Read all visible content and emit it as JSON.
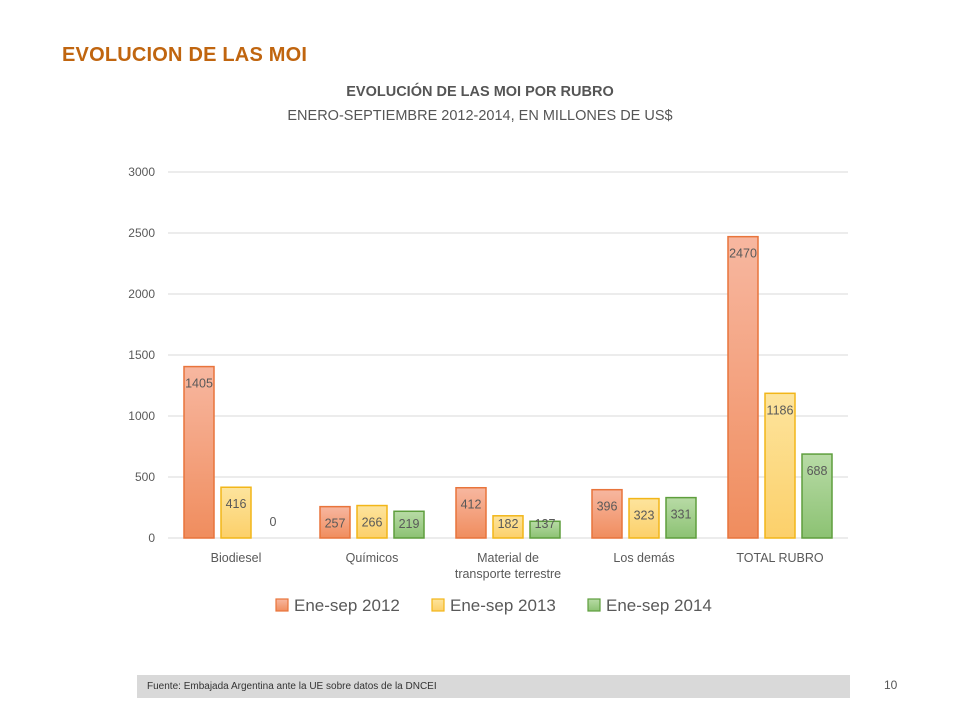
{
  "slide": {
    "title": "EVOLUCION DE LAS MOI",
    "source": "Fuente: Embajada  Argentina ante la UE sobre datos de la DNCEI",
    "page_number": "10"
  },
  "chart_data": {
    "type": "bar",
    "title": "EVOLUCIÓN DE LAS MOI POR RUBRO",
    "subtitle": "ENERO-SEPTIEMBRE 2012-2014, EN MILLONES DE US$",
    "xlabel": "",
    "ylabel": "",
    "ylim": [
      0,
      3000
    ],
    "yticks": [
      0,
      500,
      1000,
      1500,
      2000,
      2500,
      3000
    ],
    "grid": true,
    "legend_position": "bottom",
    "categories": [
      [
        "Biodiesel"
      ],
      [
        "Químicos"
      ],
      [
        "Material de",
        "transporte terrestre"
      ],
      [
        "Los demás"
      ],
      [
        "TOTAL RUBRO"
      ]
    ],
    "series": [
      {
        "name": "Ene-sep 2012",
        "color": "#f4a582",
        "border": "#e8743b",
        "values": [
          1405,
          257,
          412,
          396,
          2470
        ]
      },
      {
        "name": "Ene-sep 2013",
        "color": "#fdd778",
        "border": "#f2b619",
        "values": [
          416,
          266,
          182,
          323,
          1186
        ]
      },
      {
        "name": "Ene-sep 2014",
        "color": "#a5d18d",
        "border": "#5e9e3d",
        "values": [
          0,
          219,
          137,
          331,
          688
        ]
      }
    ]
  }
}
